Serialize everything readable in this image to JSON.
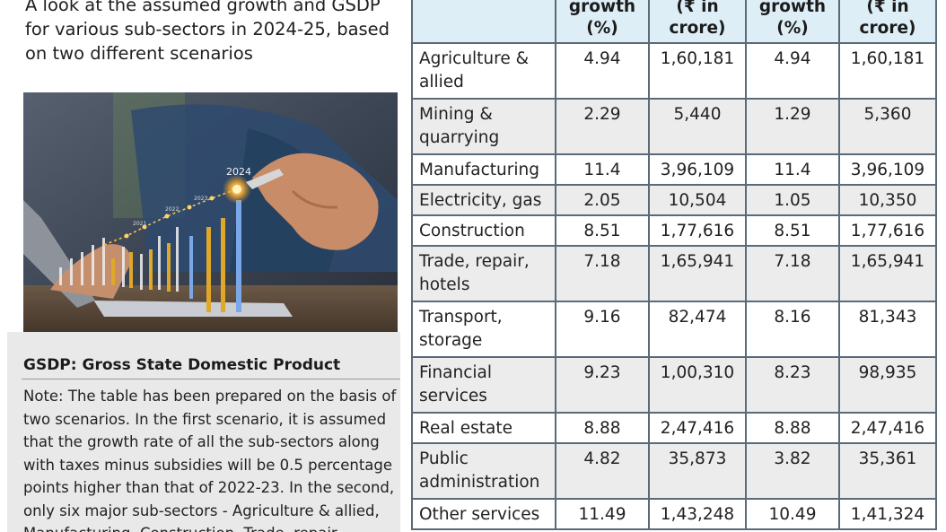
{
  "intro": "A look at the assumed growth and GSDP for various sub-sectors in 2024-25, based on two different scenarios",
  "photo": {
    "year_label": "2024",
    "small_labels": [
      "2023",
      "2022",
      "2021"
    ]
  },
  "note_box": {
    "title": "GSDP: Gross State Domestic Product",
    "note": "Note: The table has been prepared on the basis of two scenarios. In the first scenario, it is assumed that the growth rate of all the sub-sectors along with taxes minus subsidies will be 0.5 percentage points higher than that of 2022-23. In the second, only six major sub-sectors - Agriculture & allied, Manufacturing, Construction, Trade, repair,"
  },
  "table": {
    "headers": [
      "",
      "growth\n(%)",
      "(₹ in\ncrore)",
      "growth\n(%)",
      "(₹ in\ncrore)"
    ],
    "rows": [
      {
        "sector": "Agriculture & allied",
        "g1": "4.94",
        "v1": "1,60,181",
        "g2": "4.94",
        "v2": "1,60,181"
      },
      {
        "sector": "Mining & quarrying",
        "g1": "2.29",
        "v1": "5,440",
        "g2": "1.29",
        "v2": "5,360"
      },
      {
        "sector": "Manufacturing",
        "g1": "11.4",
        "v1": "3,96,109",
        "g2": "11.4",
        "v2": "3,96,109"
      },
      {
        "sector": "Electricity, gas",
        "g1": "2.05",
        "v1": "10,504",
        "g2": "1.05",
        "v2": "10,350"
      },
      {
        "sector": "Construction",
        "g1": "8.51",
        "v1": "1,77,616",
        "g2": "8.51",
        "v2": "1,77,616"
      },
      {
        "sector": "Trade, repair, hotels",
        "g1": "7.18",
        "v1": "1,65,941",
        "g2": "7.18",
        "v2": "1,65,941"
      },
      {
        "sector": "Transport, storage",
        "g1": "9.16",
        "v1": "82,474",
        "g2": "8.16",
        "v2": "81,343"
      },
      {
        "sector": "Financial services",
        "g1": "9.23",
        "v1": "1,00,310",
        "g2": "8.23",
        "v2": "98,935"
      },
      {
        "sector": "Real estate",
        "g1": "8.88",
        "v1": "2,47,416",
        "g2": "8.88",
        "v2": "2,47,416"
      },
      {
        "sector": "Public administration",
        "g1": "4.82",
        "v1": "35,873",
        "g2": "3.82",
        "v2": "35,361"
      },
      {
        "sector": "Other services",
        "g1": "11.49",
        "v1": "1,43,248",
        "g2": "10.49",
        "v2": "1,41,324"
      }
    ]
  },
  "colors": {
    "header_bg": "#ddeef6",
    "row_alt": "#ececec",
    "note_bg": "#e9e9e9",
    "border": "#5b6a78"
  }
}
